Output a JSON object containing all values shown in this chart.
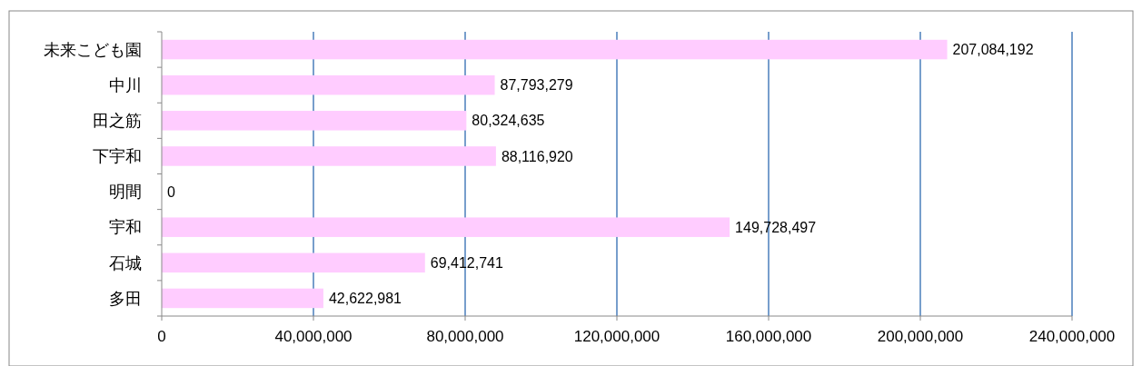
{
  "chart_data": {
    "type": "bar",
    "orientation": "horizontal",
    "categories": [
      "未来こども園",
      "中川",
      "田之筋",
      "下宇和",
      "明間",
      "宇和",
      "石城",
      "多田"
    ],
    "values": [
      207084192,
      87793279,
      80324635,
      88116920,
      0,
      149728497,
      69412741,
      42622981
    ],
    "color": "#ffccff",
    "xlim": [
      0,
      240000000
    ],
    "xticks": [
      {
        "value": 0,
        "label": "0"
      },
      {
        "value": 40000000,
        "label": "40,000,000"
      },
      {
        "value": 80000000,
        "label": "80,000,000"
      },
      {
        "value": 120000000,
        "label": "120,000,000"
      },
      {
        "value": 160000000,
        "label": "160,000,000"
      },
      {
        "value": 200000000,
        "label": "200,000,000"
      },
      {
        "value": 240000000,
        "label": "240,000,000"
      }
    ],
    "grid": "x",
    "value_labels": [
      "207,084,192",
      "87,793,279",
      "80,324,635",
      "88,116,920",
      "0",
      "149,728,497",
      "69,412,741",
      "42,622,981"
    ]
  }
}
